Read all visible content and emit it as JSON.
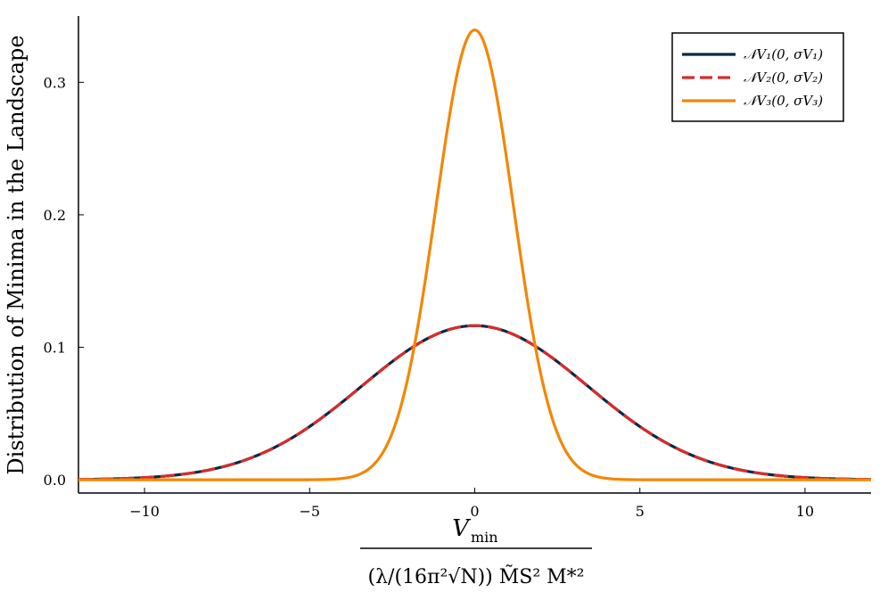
{
  "chart_data": {
    "type": "line",
    "title": "",
    "xlabel_numerator": "V",
    "xlabel_numerator_sub": "min",
    "xlabel_denominator": "(λ/(16π²√N)) M̃S² M*²",
    "ylabel": "Distribution of Minima in the Landscape",
    "xlim": [
      -12,
      12
    ],
    "ylim": [
      -0.01,
      0.35
    ],
    "xticks": [
      -10,
      -5,
      0,
      5,
      10
    ],
    "xtick_labels": [
      "−10",
      "−5",
      "0",
      "5",
      "10"
    ],
    "yticks": [
      0.0,
      0.1,
      0.2,
      0.3
    ],
    "ytick_labels": [
      "0.0",
      "0.1",
      "0.2",
      "0.3"
    ],
    "grid": false,
    "legend_position": "top-right",
    "series": [
      {
        "name": "𝒩V₁(0, σV₁)",
        "distribution": "normal",
        "mean": 0,
        "sd": 3.43,
        "color": "#002b45",
        "style": "solid"
      },
      {
        "name": "𝒩V₂(0, σV₂)",
        "distribution": "normal",
        "mean": 0,
        "sd": 3.43,
        "color": "#d62c2c",
        "style": "dashed"
      },
      {
        "name": "𝒩V₃(0, σV₃)",
        "distribution": "normal",
        "mean": 0,
        "sd": 1.175,
        "color": "#f28705",
        "style": "solid"
      }
    ]
  }
}
